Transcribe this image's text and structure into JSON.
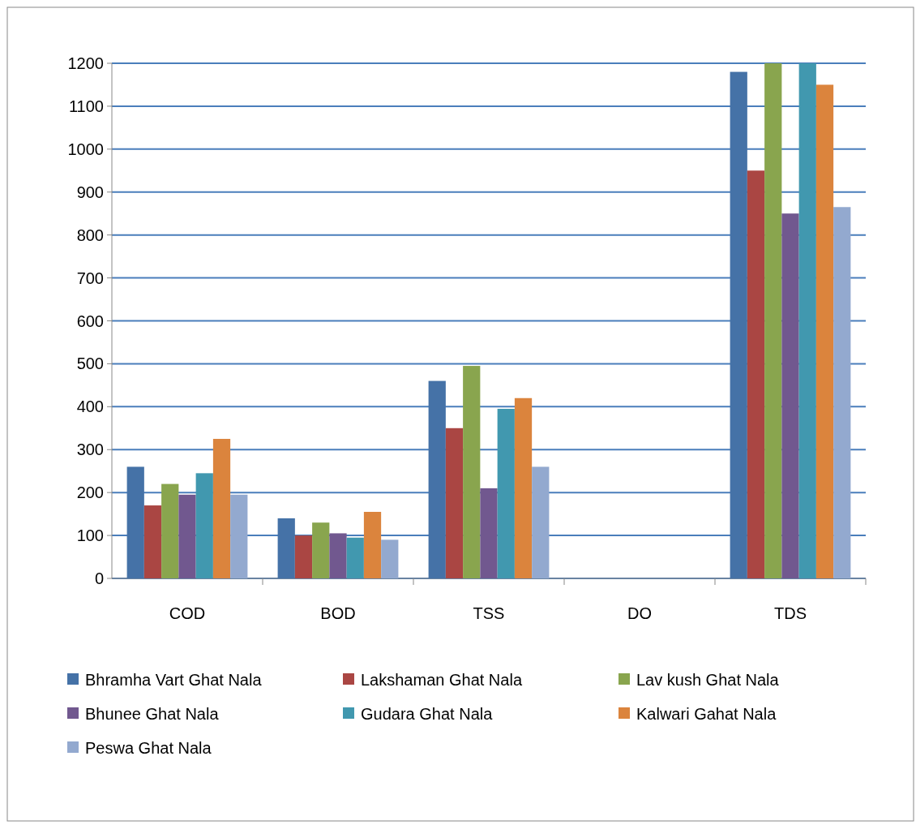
{
  "chart_data": {
    "type": "bar",
    "categories": [
      "COD",
      "BOD",
      "TSS",
      "DO",
      "TDS"
    ],
    "series": [
      {
        "name": "Bhramha Vart Ghat Nala",
        "color": "#4572a7",
        "values": [
          260,
          140,
          460,
          null,
          1180
        ]
      },
      {
        "name": "Lakshaman Ghat Nala",
        "color": "#aa4643",
        "values": [
          170,
          100,
          350,
          null,
          950
        ]
      },
      {
        "name": "Lav kush Ghat Nala",
        "color": "#89a54e",
        "values": [
          220,
          130,
          495,
          null,
          1200
        ]
      },
      {
        "name": "Bhunee Ghat Nala",
        "color": "#71588f",
        "values": [
          195,
          105,
          210,
          null,
          850
        ]
      },
      {
        "name": "Gudara Ghat Nala",
        "color": "#4198af",
        "values": [
          245,
          95,
          395,
          null,
          1200
        ]
      },
      {
        "name": "Kalwari Gahat Nala",
        "color": "#db843d",
        "values": [
          325,
          155,
          420,
          null,
          1150
        ]
      },
      {
        "name": "Peswa Ghat Nala",
        "color": "#93a9cf",
        "values": [
          195,
          90,
          260,
          null,
          865
        ]
      }
    ],
    "ylim": [
      0,
      1200
    ],
    "yticks": [
      0,
      100,
      200,
      300,
      400,
      500,
      600,
      700,
      800,
      900,
      1000,
      1100,
      1200
    ],
    "grid": "y",
    "legend": "bottom"
  }
}
